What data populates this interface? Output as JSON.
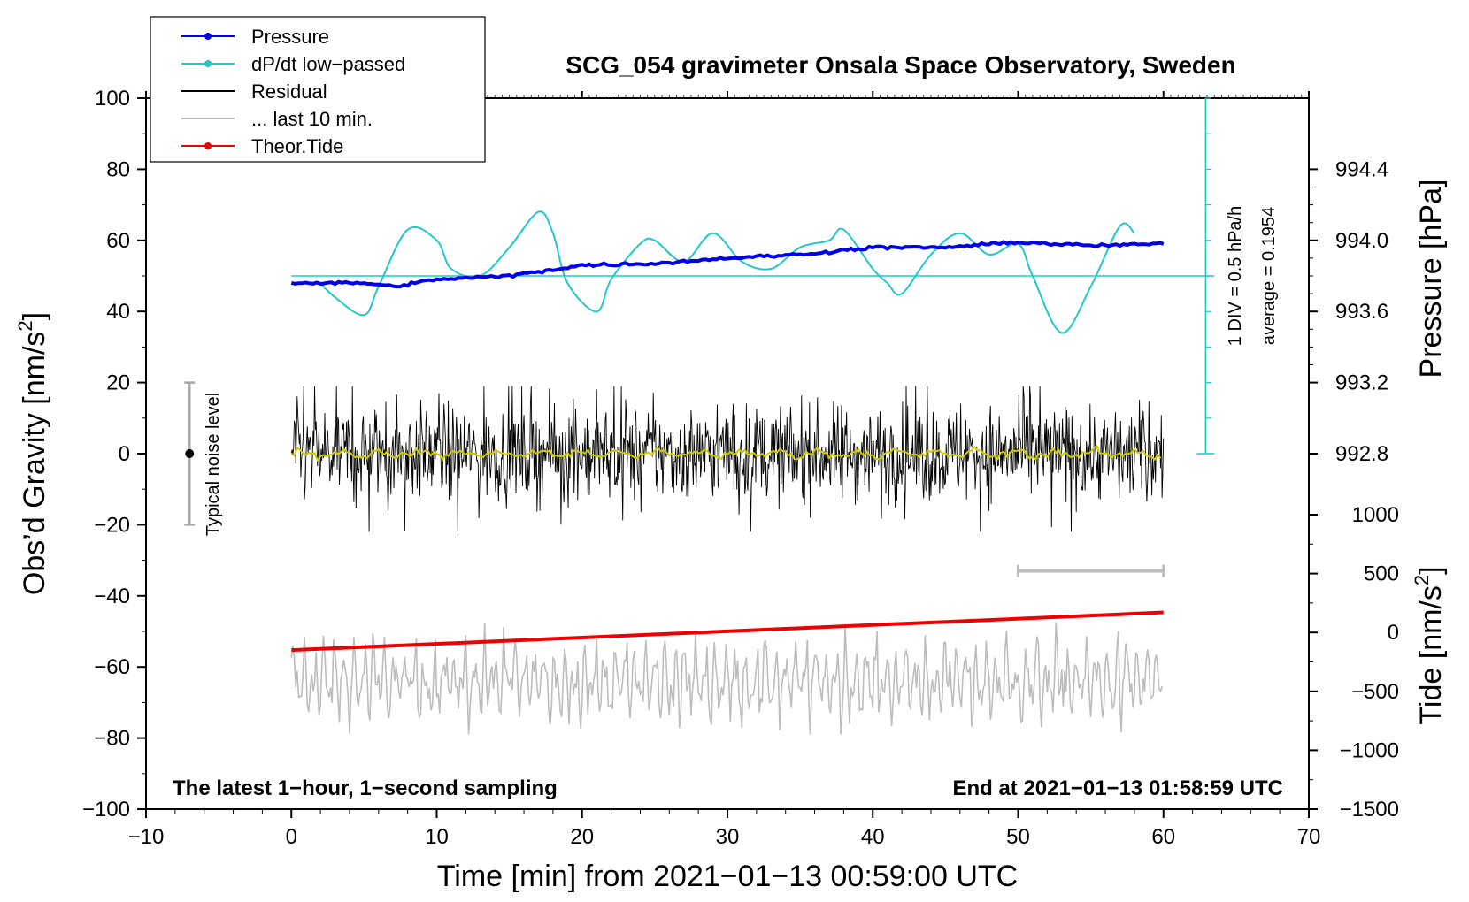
{
  "chart_data": {
    "type": "line",
    "title": "SCG_054 gravimeter Onsala Space Observatory, Sweden",
    "xlabel": "Time [min] from 2021−01−13 00:59:00 UTC",
    "ylabel_left": "Obs’d Gravity [nm/s",
    "ylabel_left_sup": "2",
    "ylabel_left_close": "]",
    "ylabel_right_pressure": "Pressure [hPa]",
    "ylabel_right_tide": "Tide [nm/s",
    "ylabel_right_tide_sup": "2",
    "ylabel_right_tide_close": "]",
    "xlim": [
      -10,
      70
    ],
    "ylim_left": [
      -100,
      100
    ],
    "x_ticks": [
      "−10",
      "0",
      "10",
      "20",
      "30",
      "40",
      "50",
      "60",
      "70"
    ],
    "x_tick_values": [
      -10,
      0,
      10,
      20,
      30,
      40,
      50,
      60,
      70
    ],
    "y_left_ticks": [
      "100",
      "80",
      "60",
      "40",
      "20",
      "0",
      "−20",
      "−40",
      "−60",
      "−80",
      "−100"
    ],
    "y_left_tick_values": [
      100,
      80,
      60,
      40,
      20,
      0,
      -20,
      -40,
      -60,
      -80,
      -100
    ],
    "pressure_ticks": [
      "994.4",
      "994.0",
      "993.6",
      "993.2",
      "992.8"
    ],
    "pressure_tick_values": [
      994.4,
      994.0,
      993.6,
      993.2,
      992.8
    ],
    "tide_ticks": [
      "1000",
      "500",
      "0",
      "−500",
      "−1000",
      "−1500"
    ],
    "tide_tick_values": [
      1000,
      500,
      0,
      -500,
      -1000,
      -1500
    ],
    "legend": [
      {
        "label": "Pressure",
        "color": "#0000ee",
        "marker": true
      },
      {
        "label": "dP/dt low−passed",
        "color": "#20c8c8",
        "marker": true
      },
      {
        "label": "Residual",
        "color": "#000000",
        "marker": false
      },
      {
        "label": "... last 10 min.",
        "color": "#bbbbbb",
        "marker": false
      },
      {
        "label": "Theor.Tide",
        "color": "#ee0000",
        "marker": true
      }
    ],
    "series": [
      {
        "name": "Pressure",
        "unit": "hPa",
        "x": [
          0,
          5,
          7,
          10,
          15,
          20,
          25,
          30,
          35,
          40,
          45,
          50,
          55,
          60
        ],
        "values": [
          993.76,
          993.76,
          993.74,
          993.78,
          993.8,
          993.86,
          993.87,
          993.9,
          993.92,
          993.96,
          993.96,
          993.99,
          993.97,
          993.98
        ]
      },
      {
        "name": "dP/dt low−passed",
        "unit": "nm/s2 (plot units)",
        "x": [
          2,
          3,
          5,
          6,
          8,
          10,
          11,
          13,
          15,
          17,
          18,
          19,
          21,
          22,
          24,
          25,
          27,
          29,
          31,
          33,
          35,
          37,
          38,
          40,
          41,
          42,
          44,
          46,
          48,
          50,
          51,
          53,
          55,
          57,
          58
        ],
        "values": [
          48,
          44,
          39,
          47,
          63,
          60,
          52,
          50,
          58,
          68,
          62,
          48,
          40,
          49,
          59,
          60,
          54,
          62,
          54,
          52,
          58,
          60,
          63,
          52,
          48,
          45,
          56,
          62,
          56,
          59,
          50,
          34,
          47,
          64,
          62
        ]
      },
      {
        "name": "Residual",
        "unit": "nm/s2",
        "x_range": [
          0,
          60
        ],
        "mean": 0,
        "amplitude_approx": 18
      },
      {
        "name": "Residual smoothed",
        "unit": "nm/s2",
        "x_range": [
          0,
          60
        ],
        "mean": 0
      },
      {
        "name": "... last 10 min.",
        "unit": "nm/s2 (plot units)",
        "x_range": [
          0,
          60
        ],
        "mean": -64,
        "amplitude_approx": 12
      },
      {
        "name": "Theor.Tide",
        "unit": "nm/s2",
        "x": [
          0,
          60
        ],
        "values": [
          -150,
          170
        ]
      }
    ],
    "dpdt_zero_line": 50,
    "annotations": {
      "scale_label": "1 DIV = 0.5 hPa/h",
      "average_label": "average = 0.1954",
      "latest_label": "The latest 1−hour, 1−second sampling",
      "end_label": "End at 2021−01−13 01:58:59 UTC",
      "noise_label": "Typical noise level",
      "noise_range": [
        -20,
        20
      ],
      "noise_x": -7,
      "last10_bar_x": [
        50,
        60
      ],
      "last10_bar_y": -33
    }
  }
}
